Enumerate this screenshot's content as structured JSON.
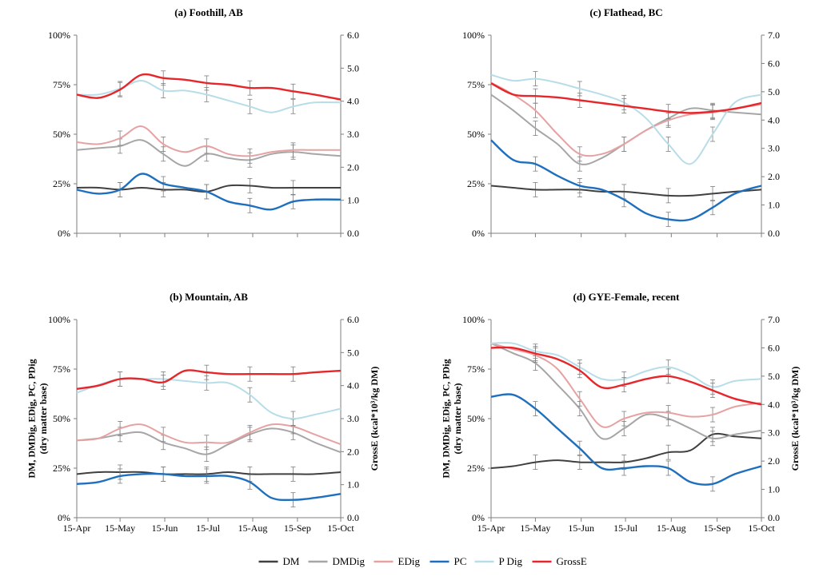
{
  "colors": {
    "DM": "#404040",
    "DMDig": "#a6a6a6",
    "EDig": "#e6a2a2",
    "PC": "#1f6fbf",
    "P Dig": "#b7dde8",
    "GrossE": "#e6262a"
  },
  "legend": [
    "DM",
    "DMDig",
    "EDig",
    "PC",
    "P Dig",
    "GrossE"
  ],
  "legend_placement": "bottom-center",
  "x_tick_labels": [
    "15-Apr",
    "15-May",
    "15-Jun",
    "15-Jul",
    "15-Aug",
    "15-Sep",
    "15-Oct"
  ],
  "chart_data": [
    {
      "type": "line",
      "title": "(a) Foothill, AB",
      "ylabel_left": "",
      "ylabel_right": "",
      "ylim_left": [
        0,
        100
      ],
      "ylim_right": [
        0,
        6
      ],
      "left_ticks": [
        "0%",
        "25%",
        "50%",
        "75%",
        "100%"
      ],
      "right_ticks": [
        "0.0",
        "1.0",
        "2.0",
        "3.0",
        "4.0",
        "5.0",
        "6.0"
      ],
      "x": [
        0,
        15,
        30,
        45,
        60,
        75,
        90,
        105,
        120,
        135,
        150,
        165,
        183
      ],
      "x_tick_labels_shown": false,
      "series": [
        {
          "name": "DM",
          "axis": "left",
          "values": [
            23,
            23,
            22,
            23,
            22,
            22,
            21,
            24,
            24,
            23,
            23,
            23,
            23
          ]
        },
        {
          "name": "DMDig",
          "axis": "left",
          "values": [
            42,
            43,
            44,
            47,
            40,
            34,
            40,
            38,
            37,
            40,
            41,
            40,
            39
          ]
        },
        {
          "name": "EDig",
          "axis": "left",
          "values": [
            46,
            45,
            48,
            54,
            45,
            41,
            44,
            40,
            39,
            41,
            42,
            42,
            42
          ]
        },
        {
          "name": "PC",
          "axis": "left",
          "values": [
            22,
            20,
            22,
            30,
            25,
            23,
            21,
            16,
            14,
            12,
            16,
            17,
            17
          ]
        },
        {
          "name": "P Dig",
          "axis": "left",
          "values": [
            70,
            70,
            73,
            77,
            72,
            72,
            70,
            67,
            64,
            61,
            64,
            66,
            66
          ]
        },
        {
          "name": "GrossE",
          "axis": "right",
          "values": [
            4.2,
            4.1,
            4.35,
            4.8,
            4.7,
            4.65,
            4.55,
            4.5,
            4.4,
            4.4,
            4.3,
            4.2,
            4.05
          ]
        }
      ]
    },
    {
      "type": "line",
      "title": "(c) Flathead, BC",
      "ylabel_left": "",
      "ylabel_right": "",
      "ylim_left": [
        0,
        100
      ],
      "ylim_right": [
        0,
        7
      ],
      "left_ticks": [
        "0%",
        "25%",
        "50%",
        "75%",
        "100%"
      ],
      "right_ticks": [
        "0.0",
        "1.0",
        "2.0",
        "3.0",
        "4.0",
        "5.0",
        "6.0",
        "7.0"
      ],
      "x": [
        0,
        15,
        30,
        45,
        60,
        75,
        90,
        105,
        120,
        135,
        150,
        165,
        183
      ],
      "x_tick_labels_shown": false,
      "series": [
        {
          "name": "DM",
          "axis": "left",
          "values": [
            24,
            23,
            22,
            22,
            22,
            21,
            21,
            20,
            19,
            19,
            20,
            21,
            22
          ]
        },
        {
          "name": "DMDig",
          "axis": "left",
          "values": [
            70,
            62,
            53,
            45,
            35,
            38,
            45,
            52,
            58,
            63,
            62,
            61,
            60
          ]
        },
        {
          "name": "EDig",
          "axis": "left",
          "values": [
            76,
            70,
            62,
            50,
            40,
            40,
            45,
            52,
            57,
            60,
            61,
            63,
            65
          ]
        },
        {
          "name": "PC",
          "axis": "left",
          "values": [
            47,
            37,
            35,
            29,
            24,
            22,
            17,
            10,
            7,
            7,
            13,
            20,
            24
          ]
        },
        {
          "name": "P Dig",
          "axis": "left",
          "values": [
            80,
            77,
            78,
            76,
            73,
            70,
            66,
            58,
            45,
            35,
            50,
            66,
            70
          ]
        },
        {
          "name": "GrossE",
          "axis": "right",
          "values": [
            5.3,
            4.9,
            4.85,
            4.8,
            4.7,
            4.6,
            4.5,
            4.4,
            4.3,
            4.25,
            4.3,
            4.4,
            4.6
          ]
        }
      ]
    },
    {
      "type": "line",
      "title": "(b) Mountain, AB",
      "ylabel_left": "DM, DMDig, EDig, PC, PDig (dry matter base)",
      "ylabel_right": "GrossE (kcal*10³/kg DM)",
      "ylim_left": [
        0,
        100
      ],
      "ylim_right": [
        0,
        6
      ],
      "left_ticks": [
        "0%",
        "25%",
        "50%",
        "75%",
        "100%"
      ],
      "right_ticks": [
        "0.0",
        "1.0",
        "2.0",
        "3.0",
        "4.0",
        "5.0",
        "6.0"
      ],
      "x": [
        0,
        15,
        30,
        45,
        60,
        75,
        90,
        105,
        120,
        135,
        150,
        165,
        183
      ],
      "x_tick_labels_shown": true,
      "series": [
        {
          "name": "DM",
          "axis": "left",
          "values": [
            22,
            23,
            23,
            23,
            22,
            22,
            22,
            23,
            22,
            22,
            22,
            22,
            23
          ]
        },
        {
          "name": "DMDig",
          "axis": "left",
          "values": [
            39,
            40,
            42,
            43,
            38,
            35,
            32,
            37,
            42,
            45,
            43,
            38,
            33
          ]
        },
        {
          "name": "EDig",
          "axis": "left",
          "values": [
            39,
            40,
            45,
            47,
            42,
            38,
            38,
            38,
            43,
            47,
            46,
            42,
            37
          ]
        },
        {
          "name": "PC",
          "axis": "left",
          "values": [
            17,
            18,
            21,
            22,
            22,
            21,
            21,
            21,
            18,
            10,
            9,
            10,
            12
          ]
        },
        {
          "name": "P Dig",
          "axis": "left",
          "values": [
            63,
            67,
            70,
            70,
            70,
            69,
            68,
            68,
            62,
            53,
            50,
            52,
            55
          ]
        },
        {
          "name": "GrossE",
          "axis": "right",
          "values": [
            3.9,
            4.0,
            4.2,
            4.2,
            4.1,
            4.45,
            4.4,
            4.35,
            4.35,
            4.35,
            4.35,
            4.4,
            4.45
          ]
        }
      ]
    },
    {
      "type": "line",
      "title": "(d) GYE-Female, recent",
      "ylabel_left": "DM, DMDig, EDig, PC, PDig (dry matter base)",
      "ylabel_right": "GrossE (kcal*10³/kg DM)",
      "ylim_left": [
        0,
        100
      ],
      "ylim_right": [
        0,
        7
      ],
      "left_ticks": [
        "0%",
        "25%",
        "50%",
        "75%",
        "100%"
      ],
      "right_ticks": [
        "0.0",
        "1.0",
        "2.0",
        "3.0",
        "4.0",
        "5.0",
        "6.0",
        "7.0"
      ],
      "x": [
        0,
        15,
        30,
        45,
        60,
        75,
        90,
        105,
        120,
        135,
        150,
        165,
        183
      ],
      "x_tick_labels_shown": true,
      "series": [
        {
          "name": "DM",
          "axis": "left",
          "values": [
            25,
            26,
            28,
            29,
            28,
            28,
            28,
            30,
            33,
            34,
            42,
            41,
            40
          ]
        },
        {
          "name": "DMDig",
          "axis": "left",
          "values": [
            88,
            83,
            78,
            67,
            55,
            40,
            45,
            52,
            50,
            45,
            40,
            42,
            44
          ]
        },
        {
          "name": "EDig",
          "axis": "left",
          "values": [
            88,
            85,
            82,
            75,
            60,
            46,
            50,
            53,
            53,
            51,
            52,
            56,
            58
          ]
        },
        {
          "name": "PC",
          "axis": "left",
          "values": [
            61,
            62,
            55,
            45,
            35,
            25,
            25,
            26,
            25,
            18,
            17,
            22,
            26
          ]
        },
        {
          "name": "P Dig",
          "axis": "left",
          "values": [
            88,
            88,
            84,
            82,
            76,
            70,
            70,
            74,
            76,
            72,
            66,
            69,
            70
          ]
        },
        {
          "name": "GrossE",
          "axis": "right",
          "values": [
            6.0,
            6.0,
            5.8,
            5.6,
            5.2,
            4.6,
            4.7,
            4.9,
            5.0,
            4.8,
            4.5,
            4.2,
            4.0
          ]
        }
      ]
    }
  ]
}
